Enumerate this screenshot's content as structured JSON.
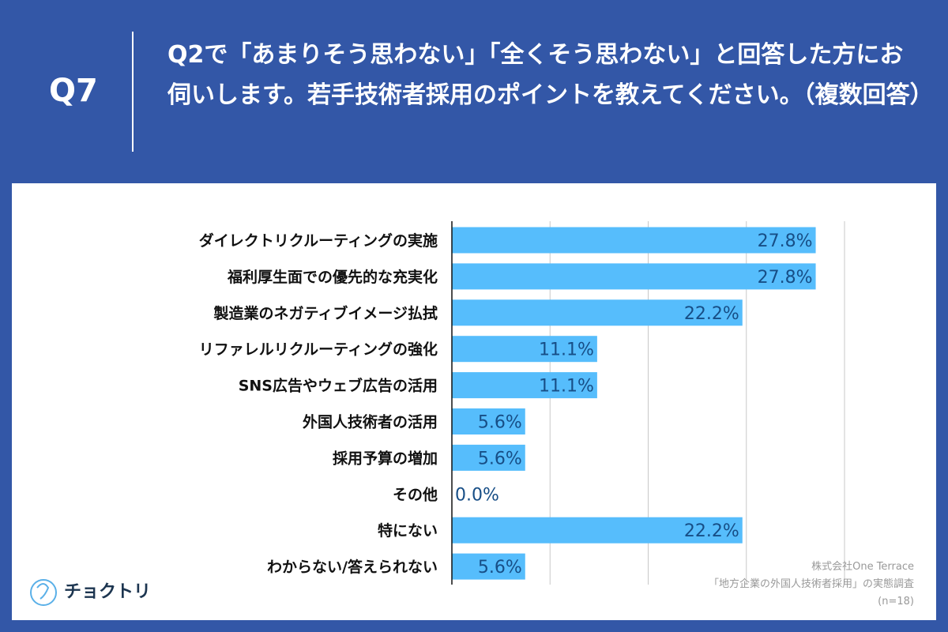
{
  "header": {
    "q": "Q7",
    "title": "Q2で「あまりそう思わない」「全くそう思わない」と回答した方にお伺いします。若手技術者採用のポイントを教えてください。（複数回答）"
  },
  "source": {
    "line1": "株式会社One Terrace",
    "line2": "「地方企業の外国人技術者採用」の実態調査",
    "line3": "(n=18)"
  },
  "logo": {
    "text": "チョクトリ"
  },
  "colors": {
    "bar": "#56bdfc",
    "label": "#174e86",
    "header": "#3357a7"
  },
  "chart_data": {
    "type": "bar",
    "orientation": "horizontal",
    "xlim": [
      0,
      30
    ],
    "grid": true,
    "gridlines": [
      7.5,
      15,
      22.5,
      30
    ],
    "categories": [
      "ダイレクトリクルーティングの実施",
      "福利厚生面での優先的な充実化",
      "製造業のネガティブイメージ払拭",
      "リファレルリクルーティングの強化",
      "SNS広告やウェブ広告の活用",
      "外国人技術者の活用",
      "採用予算の増加",
      "その他",
      "特にない",
      "わからない/答えられない"
    ],
    "values": [
      27.8,
      27.8,
      22.2,
      11.1,
      11.1,
      5.6,
      5.6,
      0.0,
      22.2,
      5.6
    ],
    "labels": [
      "27.8%",
      "27.8%",
      "22.2%",
      "11.1%",
      "11.1%",
      "5.6%",
      "5.6%",
      "0.0%",
      "22.2%",
      "5.6%"
    ]
  }
}
